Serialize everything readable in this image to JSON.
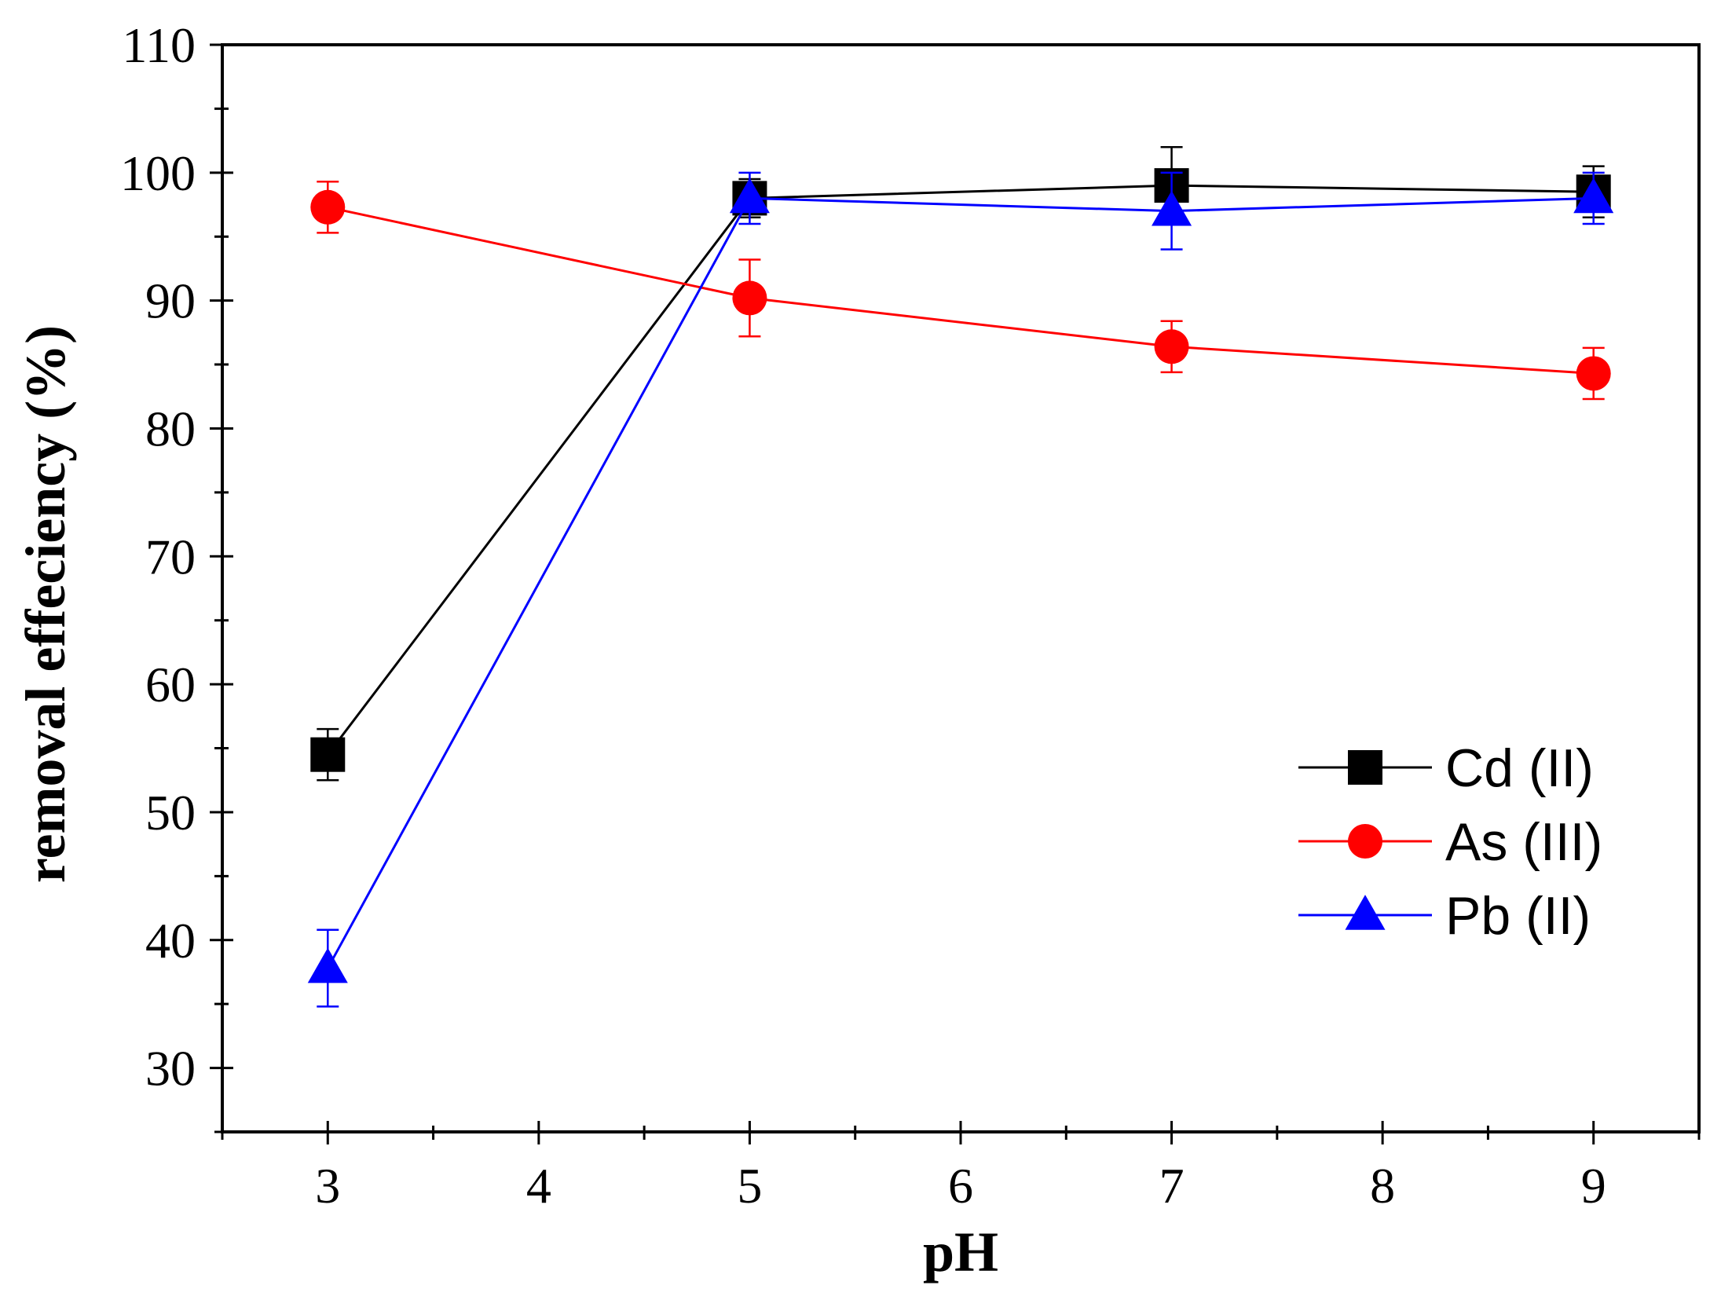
{
  "chart_data": {
    "type": "line",
    "title": "",
    "xlabel": "pH",
    "ylabel": "removal effeciency (%)",
    "xlim": [
      2.5,
      9.5
    ],
    "ylim": [
      25,
      110
    ],
    "x_ticks": [
      3,
      4,
      5,
      6,
      7,
      8,
      9
    ],
    "x_tick_labels": [
      "3",
      "4",
      "5",
      "6",
      "7",
      "8",
      "9"
    ],
    "y_ticks": [
      30,
      40,
      50,
      60,
      70,
      80,
      90,
      100,
      110
    ],
    "y_tick_labels": [
      "30",
      "40",
      "50",
      "60",
      "70",
      "80",
      "90",
      "100",
      "110"
    ],
    "x": [
      3,
      5,
      7,
      9
    ],
    "legend_position": "bottom-right",
    "series": [
      {
        "name": "Cd (II)",
        "marker": "square",
        "color": "#000000",
        "values": [
          54.5,
          98.0,
          99.0,
          98.5
        ],
        "errors": [
          2.0,
          1.5,
          3.0,
          2.0
        ]
      },
      {
        "name": "As (III)",
        "marker": "circle",
        "color": "#ff0000",
        "values": [
          97.3,
          90.2,
          86.4,
          84.3
        ],
        "errors": [
          2.0,
          3.0,
          2.0,
          2.0
        ]
      },
      {
        "name": "Pb (II)",
        "marker": "triangle",
        "color": "#0000ff",
        "values": [
          37.8,
          98.0,
          97.0,
          98.0
        ],
        "errors": [
          3.0,
          2.0,
          3.0,
          2.0
        ]
      }
    ]
  }
}
